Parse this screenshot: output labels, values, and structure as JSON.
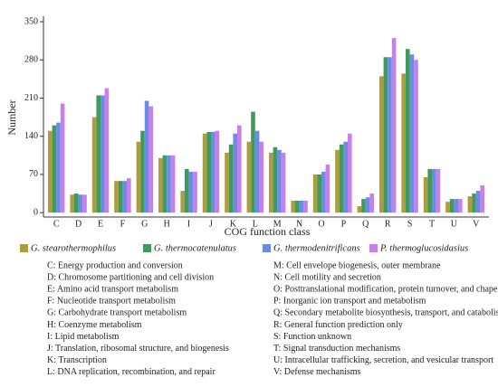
{
  "chart_data": {
    "type": "bar",
    "y_label": "Number",
    "x_label": "COG function class",
    "categories": [
      "C",
      "D",
      "E",
      "F",
      "G",
      "H",
      "I",
      "J",
      "K",
      "L",
      "M",
      "N",
      "O",
      "P",
      "Q",
      "R",
      "S",
      "T",
      "U",
      "V"
    ],
    "series": [
      {
        "name": "G. stearothermophilus",
        "color": "#ad9d3f",
        "values": [
          150,
          33,
          175,
          58,
          130,
          100,
          40,
          145,
          110,
          130,
          110,
          22,
          70,
          115,
          12,
          250,
          255,
          65,
          20,
          30
        ]
      },
      {
        "name": "G. thermocatenulatus",
        "color": "#3f9a5c",
        "values": [
          160,
          35,
          215,
          58,
          150,
          105,
          80,
          148,
          125,
          185,
          120,
          22,
          70,
          125,
          25,
          285,
          300,
          80,
          25,
          35
        ]
      },
      {
        "name": "G. thermodenitrificans",
        "color": "#6b8ce6",
        "values": [
          165,
          33,
          215,
          58,
          205,
          105,
          75,
          148,
          145,
          150,
          115,
          22,
          75,
          130,
          28,
          285,
          290,
          80,
          25,
          40
        ]
      },
      {
        "name": "P. thermoglucosidasius",
        "color": "#c77fe9",
        "values": [
          200,
          33,
          228,
          63,
          195,
          105,
          75,
          150,
          160,
          130,
          110,
          22,
          88,
          145,
          35,
          320,
          280,
          80,
          25,
          50
        ]
      }
    ],
    "ylim": [
      -8,
      360
    ],
    "yticks": [
      0,
      70,
      140,
      210,
      280,
      350
    ],
    "legend_key": [
      "C: Energy production and conversion",
      "D: Chromosome partitioning and cell division",
      "E: Amino acid transport metabolism",
      "F: Nucleotide transport metabolism",
      "G: Carbohydrate transport metabolism",
      "H: Coenzyme metabolism",
      "I: Lipid metabolism",
      "J: Translation, ribosomal structure, and biogenesis",
      "K: Transcription",
      "L: DNA replication, recombination, and repair",
      "M: Cell envelope biogenesis, outer membrane",
      "N: Cell motility and secretion",
      "O: Posttranslational modification, protein turnover, and chaperones",
      "P: Inorganic ion transport and metabolism",
      "Q: Secondary metabolite biosynthesis, transport, and catabolism",
      "R: General function prediction only",
      "S: Function unknown",
      "T: Signal transduction mechanisms",
      "U: Intracellular trafficking, secretion, and vesicular transport",
      "V: Defense mechanisms"
    ]
  }
}
